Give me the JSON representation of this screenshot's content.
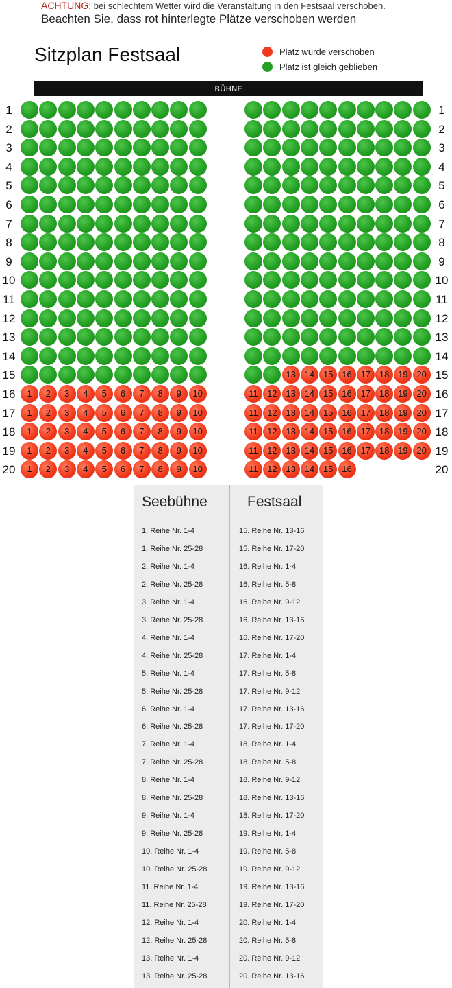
{
  "notice": {
    "warning_label": "ACHTUNG:",
    "warning_text": " bei schlechtem Wetter wird die Veranstaltung in den Festsaal verschoben.",
    "note": "Beachten Sie, dass rot hinterlegte Plätze verschoben werden"
  },
  "title": "Sitzplan Festsaal",
  "legend": [
    {
      "label": "Platz wurde verschoben",
      "color": "#f23b1e"
    },
    {
      "label": "Platz ist gleich geblieben",
      "color": "#24a024"
    }
  ],
  "stage_label": "BÜHNE",
  "colors": {
    "moved": "#f23b1e",
    "same": "#24a024",
    "stage": "#111111"
  },
  "seating": {
    "rows": [
      {
        "row": "1",
        "left": [
          "",
          "",
          "",
          "",
          "",
          "",
          "",
          "",
          "",
          ""
        ],
        "right": [
          "",
          "",
          "",
          "",
          "",
          "",
          "",
          "",
          "",
          ""
        ],
        "left_moved": false,
        "right_moved_from": 0
      },
      {
        "row": "2",
        "left_moved": false,
        "right_moved_from": 0
      },
      {
        "row": "3",
        "left_moved": false,
        "right_moved_from": 0
      },
      {
        "row": "4",
        "left_moved": false,
        "right_moved_from": 0
      },
      {
        "row": "5",
        "left_moved": false,
        "right_moved_from": 0
      },
      {
        "row": "6",
        "left_moved": false,
        "right_moved_from": 0
      },
      {
        "row": "7",
        "left_moved": false,
        "right_moved_from": 0
      },
      {
        "row": "8",
        "left_moved": false,
        "right_moved_from": 0
      },
      {
        "row": "9",
        "left_moved": false,
        "right_moved_from": 0
      },
      {
        "row": "10",
        "left_moved": false,
        "right_moved_from": 0
      },
      {
        "row": "11",
        "left_moved": false,
        "right_moved_from": 0
      },
      {
        "row": "12",
        "left_moved": false,
        "right_moved_from": 0
      },
      {
        "row": "13",
        "left_moved": false,
        "right_moved_from": 0
      },
      {
        "row": "14",
        "left_moved": false,
        "right_moved_from": 0
      },
      {
        "row": "15",
        "left_moved": false,
        "right_moved_from": 13,
        "right_count": 10
      },
      {
        "row": "16",
        "left_moved": true,
        "right_moved_from": 11,
        "right_count": 10
      },
      {
        "row": "17",
        "left_moved": true,
        "right_moved_from": 11,
        "right_count": 10
      },
      {
        "row": "18",
        "left_moved": true,
        "right_moved_from": 11,
        "right_count": 10
      },
      {
        "row": "19",
        "left_moved": true,
        "right_moved_from": 11,
        "right_count": 10
      },
      {
        "row": "20",
        "left_moved": true,
        "right_moved_from": 11,
        "right_count": 6
      }
    ]
  },
  "table": {
    "headers": [
      "Seebühne",
      "Festsaal"
    ],
    "rows": [
      [
        "1. Reihe Nr. 1-4",
        "15. Reihe Nr. 13-16"
      ],
      [
        "1. Reihe Nr. 25-28",
        "15. Reihe Nr. 17-20"
      ],
      [
        "2. Reihe Nr. 1-4",
        "16. Reihe Nr. 1-4"
      ],
      [
        "2. Reihe Nr. 25-28",
        "16. Reihe Nr. 5-8"
      ],
      [
        "3. Reihe Nr. 1-4",
        "16. Reihe Nr. 9-12"
      ],
      [
        "3. Reihe Nr. 25-28",
        "16. Reihe Nr. 13-16"
      ],
      [
        "4. Reihe Nr. 1-4",
        "16. Reihe Nr. 17-20"
      ],
      [
        "4. Reihe Nr. 25-28",
        "17. Reihe Nr. 1-4"
      ],
      [
        "5. Reihe Nr. 1-4",
        "17. Reihe Nr. 5-8"
      ],
      [
        "5. Reihe Nr. 25-28",
        "17. Reihe Nr. 9-12"
      ],
      [
        "6. Reihe Nr. 1-4",
        "17. Reihe Nr. 13-16"
      ],
      [
        "6. Reihe Nr. 25-28",
        "17. Reihe Nr. 17-20"
      ],
      [
        "7. Reihe Nr. 1-4",
        "18. Reihe Nr. 1-4"
      ],
      [
        "7. Reihe Nr. 25-28",
        "18. Reihe Nr. 5-8"
      ],
      [
        "8. Reihe Nr. 1-4",
        "18. Reihe Nr. 9-12"
      ],
      [
        "8. Reihe Nr. 25-28",
        "18. Reihe Nr. 13-16"
      ],
      [
        "9. Reihe Nr. 1-4",
        "18. Reihe Nr. 17-20"
      ],
      [
        "9. Reihe Nr. 25-28",
        "19. Reihe Nr. 1-4"
      ],
      [
        "10. Reihe Nr. 1-4",
        "19. Reihe Nr. 5-8"
      ],
      [
        "10. Reihe Nr. 25-28",
        "19. Reihe Nr. 9-12"
      ],
      [
        "11. Reihe Nr. 1-4",
        "19. Reihe Nr. 13-16"
      ],
      [
        "11. Reihe Nr. 25-28",
        "19. Reihe Nr. 17-20"
      ],
      [
        "12. Reihe Nr. 1-4",
        "20. Reihe Nr. 1-4"
      ],
      [
        "12. Reihe Nr. 25-28",
        "20. Reihe Nr. 5-8"
      ],
      [
        "13. Reihe Nr. 1-4",
        "20. Reihe Nr. 9-12"
      ],
      [
        "13. Reihe Nr. 25-28",
        "20. Reihe Nr. 13-16"
      ]
    ]
  }
}
